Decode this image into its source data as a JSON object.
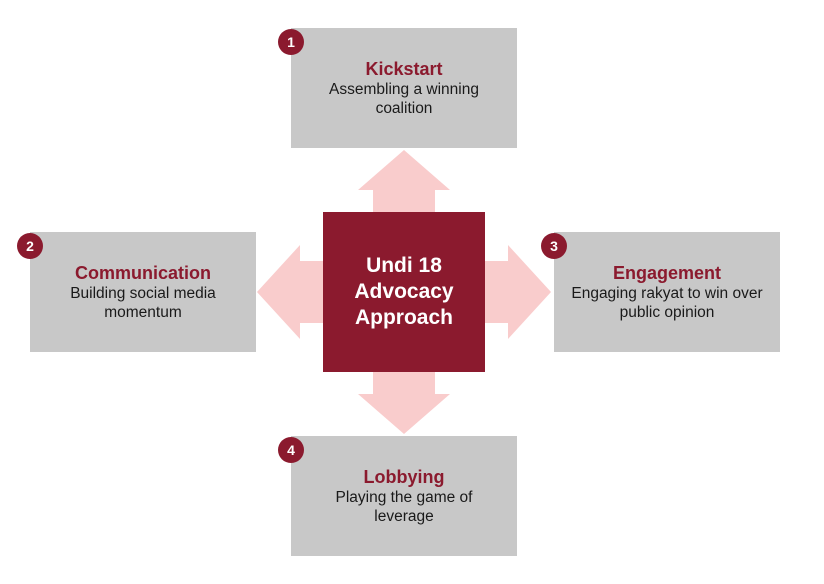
{
  "center": {
    "title": "Undi 18 Advocacy Approach"
  },
  "steps": [
    {
      "number": "1",
      "title": "Kickstart",
      "description": "Assembling a winning coalition"
    },
    {
      "number": "2",
      "title": "Communication",
      "description": "Building social media momentum"
    },
    {
      "number": "3",
      "title": "Engagement",
      "description": "Engaging rakyat to win over public opinion"
    },
    {
      "number": "4",
      "title": "Lobbying",
      "description": "Playing the game of leverage"
    }
  ],
  "colors": {
    "accent": "#8b1a2e",
    "box": "#c8c8c8",
    "arrow": "#f9cccc"
  }
}
